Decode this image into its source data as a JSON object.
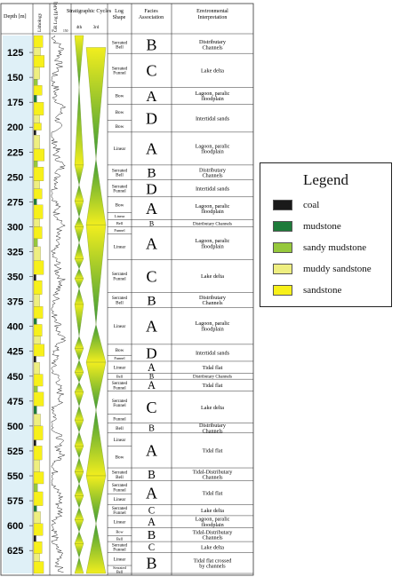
{
  "headers": {
    "depth": "Depth [m]",
    "lithology": "Lithology",
    "gr_log": "GR Log [gAPI]",
    "gr_min": "0",
    "gr_max": "150",
    "cycles": "Stratigraphic Cycles",
    "cycle_4th": "4th",
    "cycle_3rd": "3rd",
    "log_shape": "Log Shape",
    "facies": "Facies Association",
    "environment": "Environmental Interpretation"
  },
  "depth_range": [
    108,
    648
  ],
  "depth_ticks": [
    "125",
    "150",
    "175",
    "200",
    "225",
    "250",
    "275",
    "300",
    "325",
    "350",
    "375",
    "400",
    "425",
    "450",
    "475",
    "500",
    "525",
    "550",
    "575",
    "600",
    "625"
  ],
  "log_shapes": [
    {
      "top": 108,
      "bottom": 126,
      "label": "Serrated Bell"
    },
    {
      "top": 126,
      "bottom": 160,
      "label": "Serrated Funnel"
    },
    {
      "top": 160,
      "bottom": 177,
      "label": "Bow"
    },
    {
      "top": 177,
      "bottom": 193,
      "label": "Bow"
    },
    {
      "top": 193,
      "bottom": 205,
      "label": "Bow"
    },
    {
      "top": 205,
      "bottom": 238,
      "label": "Linear"
    },
    {
      "top": 238,
      "bottom": 253,
      "label": "Serrated Bell"
    },
    {
      "top": 253,
      "bottom": 270,
      "label": "Serrated Funnel"
    },
    {
      "top": 270,
      "bottom": 286,
      "label": "Bow"
    },
    {
      "top": 286,
      "bottom": 293,
      "label": "Linear"
    },
    {
      "top": 293,
      "bottom": 300,
      "label": "Bell"
    },
    {
      "top": 300,
      "bottom": 307,
      "label": "Funnel"
    },
    {
      "top": 307,
      "bottom": 333,
      "label": "Linear"
    },
    {
      "top": 333,
      "bottom": 366,
      "label": "Serrated Funnel"
    },
    {
      "top": 366,
      "bottom": 381,
      "label": "Serrated Bell"
    },
    {
      "top": 381,
      "bottom": 418,
      "label": "Linear"
    },
    {
      "top": 418,
      "bottom": 429,
      "label": "Bow"
    },
    {
      "top": 429,
      "bottom": 435,
      "label": "Funnel"
    },
    {
      "top": 435,
      "bottom": 447,
      "label": "Linear"
    },
    {
      "top": 447,
      "bottom": 453,
      "label": "Bell"
    },
    {
      "top": 453,
      "bottom": 465,
      "label": "Serrated Funnel"
    },
    {
      "top": 465,
      "bottom": 488,
      "label": "Serrated Funnel"
    },
    {
      "top": 488,
      "bottom": 497,
      "label": "Funnel"
    },
    {
      "top": 497,
      "bottom": 507,
      "label": "Bell"
    },
    {
      "top": 507,
      "bottom": 520,
      "label": "Linear"
    },
    {
      "top": 520,
      "bottom": 542,
      "label": "Bow"
    },
    {
      "top": 542,
      "bottom": 555,
      "label": "Serrated Bell"
    },
    {
      "top": 555,
      "bottom": 568,
      "label": "Serrated Funnel"
    },
    {
      "top": 568,
      "bottom": 579,
      "label": "Linear"
    },
    {
      "top": 579,
      "bottom": 590,
      "label": "Serrated Funnel"
    },
    {
      "top": 590,
      "bottom": 602,
      "label": "Linear"
    },
    {
      "top": 602,
      "bottom": 610,
      "label": "Bow"
    },
    {
      "top": 610,
      "bottom": 616,
      "label": "Bell"
    },
    {
      "top": 616,
      "bottom": 627,
      "label": "Serrated Funnel"
    },
    {
      "top": 627,
      "bottom": 640,
      "label": "Linear"
    },
    {
      "top": 640,
      "bottom": 648,
      "label": "Serrated Bell"
    }
  ],
  "facies": [
    {
      "top": 108,
      "bottom": 126,
      "letter": "B",
      "env": "Distributary Channels"
    },
    {
      "top": 126,
      "bottom": 160,
      "letter": "C",
      "env": "Lake delta"
    },
    {
      "top": 160,
      "bottom": 177,
      "letter": "A",
      "env": "Lagoon, paralic floodplain"
    },
    {
      "top": 177,
      "bottom": 205,
      "letter": "D",
      "env": "Intertidal sands"
    },
    {
      "top": 205,
      "bottom": 238,
      "letter": "A",
      "env": "Lagoon, paralic floodplain"
    },
    {
      "top": 238,
      "bottom": 253,
      "letter": "B",
      "env": "Distributary Channels"
    },
    {
      "top": 253,
      "bottom": 270,
      "letter": "D",
      "env": "Intertidal sands"
    },
    {
      "top": 270,
      "bottom": 293,
      "letter": "A",
      "env": "Lagoon, paralic floodplain"
    },
    {
      "top": 293,
      "bottom": 300,
      "letter": "B",
      "env": "Distributary Channels"
    },
    {
      "top": 300,
      "bottom": 333,
      "letter": "A",
      "env": "Lagoon, paralic floodplain"
    },
    {
      "top": 333,
      "bottom": 366,
      "letter": "C",
      "env": "Lake delta"
    },
    {
      "top": 366,
      "bottom": 381,
      "letter": "B",
      "env": "Distributary Channels"
    },
    {
      "top": 381,
      "bottom": 418,
      "letter": "A",
      "env": "Lagoon, paralic floodplain"
    },
    {
      "top": 418,
      "bottom": 435,
      "letter": "D",
      "env": "Intertidal sands"
    },
    {
      "top": 435,
      "bottom": 447,
      "letter": "A",
      "env": "Tidal flat"
    },
    {
      "top": 447,
      "bottom": 453,
      "letter": "B",
      "env": "Distributary Channels"
    },
    {
      "top": 453,
      "bottom": 465,
      "letter": "A",
      "env": "Tidal flat"
    },
    {
      "top": 465,
      "bottom": 497,
      "letter": "C",
      "env": "Lake delta"
    },
    {
      "top": 497,
      "bottom": 507,
      "letter": "B",
      "env": "Distributary Channels"
    },
    {
      "top": 507,
      "bottom": 542,
      "letter": "A",
      "env": "Tidal flat"
    },
    {
      "top": 542,
      "bottom": 555,
      "letter": "B",
      "env": "Tidal-Distributary Channels"
    },
    {
      "top": 555,
      "bottom": 579,
      "letter": "A",
      "env": "Tidal flat"
    },
    {
      "top": 579,
      "bottom": 590,
      "letter": "C",
      "env": "Lake delta"
    },
    {
      "top": 590,
      "bottom": 602,
      "letter": "A",
      "env": "Lagoon, paralic floodplain"
    },
    {
      "top": 602,
      "bottom": 616,
      "letter": "B",
      "env": "Tidal-Distributary Channels"
    },
    {
      "top": 616,
      "bottom": 627,
      "letter": "C",
      "env": "Lake delta"
    },
    {
      "top": 627,
      "bottom": 648,
      "letter": "B",
      "env": "Tidal flat crossed by channels"
    }
  ],
  "cycles_4th": [
    {
      "top": 108,
      "bottom": 160,
      "kind": "down"
    },
    {
      "top": 160,
      "bottom": 238,
      "kind": "up"
    },
    {
      "top": 238,
      "bottom": 258,
      "kind": "down"
    },
    {
      "top": 258,
      "bottom": 274,
      "kind": "up"
    },
    {
      "top": 274,
      "bottom": 290,
      "kind": "down"
    },
    {
      "top": 290,
      "bottom": 300,
      "kind": "up"
    },
    {
      "top": 300,
      "bottom": 316,
      "kind": "down"
    },
    {
      "top": 316,
      "bottom": 332,
      "kind": "up"
    },
    {
      "top": 332,
      "bottom": 342,
      "kind": "down"
    },
    {
      "top": 342,
      "bottom": 352,
      "kind": "up"
    },
    {
      "top": 352,
      "bottom": 362,
      "kind": "down"
    },
    {
      "top": 362,
      "bottom": 378,
      "kind": "up"
    },
    {
      "top": 378,
      "bottom": 410,
      "kind": "down"
    },
    {
      "top": 410,
      "bottom": 422,
      "kind": "up"
    },
    {
      "top": 422,
      "bottom": 434,
      "kind": "down"
    },
    {
      "top": 434,
      "bottom": 446,
      "kind": "up"
    },
    {
      "top": 446,
      "bottom": 456,
      "kind": "down"
    },
    {
      "top": 456,
      "bottom": 466,
      "kind": "up"
    },
    {
      "top": 466,
      "bottom": 480,
      "kind": "down"
    },
    {
      "top": 480,
      "bottom": 494,
      "kind": "up"
    },
    {
      "top": 494,
      "bottom": 506,
      "kind": "down"
    },
    {
      "top": 506,
      "bottom": 520,
      "kind": "up"
    },
    {
      "top": 520,
      "bottom": 532,
      "kind": "down"
    },
    {
      "top": 532,
      "bottom": 546,
      "kind": "up"
    },
    {
      "top": 546,
      "bottom": 558,
      "kind": "down"
    },
    {
      "top": 558,
      "bottom": 570,
      "kind": "up"
    },
    {
      "top": 570,
      "bottom": 582,
      "kind": "down"
    },
    {
      "top": 582,
      "bottom": 594,
      "kind": "up"
    },
    {
      "top": 594,
      "bottom": 606,
      "kind": "down"
    },
    {
      "top": 606,
      "bottom": 618,
      "kind": "up"
    },
    {
      "top": 618,
      "bottom": 632,
      "kind": "down"
    },
    {
      "top": 632,
      "bottom": 648,
      "kind": "up"
    }
  ],
  "cycles_3rd": [
    {
      "top": 120,
      "bottom": 232,
      "kind": "down"
    },
    {
      "top": 232,
      "bottom": 298,
      "kind": "up"
    },
    {
      "top": 298,
      "bottom": 398,
      "kind": "down"
    },
    {
      "top": 398,
      "bottom": 436,
      "kind": "up"
    },
    {
      "top": 436,
      "bottom": 484,
      "kind": "down"
    },
    {
      "top": 484,
      "bottom": 550,
      "kind": "up"
    },
    {
      "top": 550,
      "bottom": 598,
      "kind": "down"
    },
    {
      "top": 598,
      "bottom": 648,
      "kind": "up"
    }
  ],
  "lithology": [
    {
      "top": 108,
      "bottom": 120,
      "type": "sandstone",
      "width": 0.6
    },
    {
      "top": 120,
      "bottom": 128,
      "type": "muddy sandstone",
      "width": 0.45
    },
    {
      "top": 128,
      "bottom": 140,
      "type": "sandstone",
      "width": 0.7
    },
    {
      "top": 140,
      "bottom": 152,
      "type": "muddy sandstone",
      "width": 0.4
    },
    {
      "top": 152,
      "bottom": 158,
      "type": "sandy mudstone",
      "width": 0.25
    },
    {
      "top": 158,
      "bottom": 168,
      "type": "sandstone",
      "width": 0.55
    },
    {
      "top": 168,
      "bottom": 175,
      "type": "mudstone",
      "width": 0.2
    },
    {
      "top": 175,
      "bottom": 188,
      "type": "sandstone",
      "width": 0.65
    },
    {
      "top": 188,
      "bottom": 196,
      "type": "muddy sandstone",
      "width": 0.4
    },
    {
      "top": 196,
      "bottom": 203,
      "type": "sandstone",
      "width": 0.5
    },
    {
      "top": 203,
      "bottom": 208,
      "type": "coal",
      "width": 0.15
    },
    {
      "top": 208,
      "bottom": 222,
      "type": "muddy sandstone",
      "width": 0.4
    },
    {
      "top": 222,
      "bottom": 234,
      "type": "sandstone",
      "width": 0.7
    },
    {
      "top": 234,
      "bottom": 240,
      "type": "sandy mudstone",
      "width": 0.25
    },
    {
      "top": 240,
      "bottom": 254,
      "type": "sandstone",
      "width": 0.65
    },
    {
      "top": 254,
      "bottom": 262,
      "type": "muddy sandstone",
      "width": 0.4
    },
    {
      "top": 262,
      "bottom": 272,
      "type": "sandstone",
      "width": 0.55
    },
    {
      "top": 272,
      "bottom": 278,
      "type": "mudstone",
      "width": 0.2
    },
    {
      "top": 278,
      "bottom": 292,
      "type": "sandstone",
      "width": 0.6
    },
    {
      "top": 292,
      "bottom": 300,
      "type": "muddy sandstone",
      "width": 0.4
    },
    {
      "top": 300,
      "bottom": 312,
      "type": "sandstone",
      "width": 0.55
    },
    {
      "top": 312,
      "bottom": 320,
      "type": "sandy mudstone",
      "width": 0.25
    },
    {
      "top": 320,
      "bottom": 334,
      "type": "muddy sandstone",
      "width": 0.45
    },
    {
      "top": 334,
      "bottom": 348,
      "type": "sandstone",
      "width": 0.65
    },
    {
      "top": 348,
      "bottom": 354,
      "type": "coal",
      "width": 0.15
    },
    {
      "top": 354,
      "bottom": 368,
      "type": "sandstone",
      "width": 0.55
    },
    {
      "top": 368,
      "bottom": 380,
      "type": "muddy sandstone",
      "width": 0.4
    },
    {
      "top": 380,
      "bottom": 392,
      "type": "sandstone",
      "width": 0.6
    },
    {
      "top": 392,
      "bottom": 398,
      "type": "mudstone",
      "width": 0.2
    },
    {
      "top": 398,
      "bottom": 410,
      "type": "sandstone",
      "width": 0.55
    },
    {
      "top": 410,
      "bottom": 418,
      "type": "muddy sandstone",
      "width": 0.45
    },
    {
      "top": 418,
      "bottom": 430,
      "type": "sandstone",
      "width": 0.7
    },
    {
      "top": 430,
      "bottom": 436,
      "type": "coal",
      "width": 0.15
    },
    {
      "top": 436,
      "bottom": 448,
      "type": "muddy sandstone",
      "width": 0.4
    },
    {
      "top": 448,
      "bottom": 460,
      "type": "sandstone",
      "width": 0.6
    },
    {
      "top": 460,
      "bottom": 466,
      "type": "sandy mudstone",
      "width": 0.25
    },
    {
      "top": 466,
      "bottom": 480,
      "type": "sandstone",
      "width": 0.65
    },
    {
      "top": 480,
      "bottom": 488,
      "type": "mudstone",
      "width": 0.2
    },
    {
      "top": 488,
      "bottom": 500,
      "type": "muddy sandstone",
      "width": 0.45
    },
    {
      "top": 500,
      "bottom": 514,
      "type": "sandstone",
      "width": 0.6
    },
    {
      "top": 514,
      "bottom": 520,
      "type": "coal",
      "width": 0.15
    },
    {
      "top": 520,
      "bottom": 534,
      "type": "sandstone",
      "width": 0.55
    },
    {
      "top": 534,
      "bottom": 546,
      "type": "muddy sandstone",
      "width": 0.4
    },
    {
      "top": 546,
      "bottom": 558,
      "type": "sandstone",
      "width": 0.65
    },
    {
      "top": 558,
      "bottom": 566,
      "type": "sandy mudstone",
      "width": 0.25
    },
    {
      "top": 566,
      "bottom": 580,
      "type": "sandstone",
      "width": 0.6
    },
    {
      "top": 580,
      "bottom": 586,
      "type": "mudstone",
      "width": 0.2
    },
    {
      "top": 586,
      "bottom": 598,
      "type": "muddy sandstone",
      "width": 0.45
    },
    {
      "top": 598,
      "bottom": 610,
      "type": "sandstone",
      "width": 0.6
    },
    {
      "top": 610,
      "bottom": 616,
      "type": "coal",
      "width": 0.15
    },
    {
      "top": 616,
      "bottom": 628,
      "type": "sandstone",
      "width": 0.55
    },
    {
      "top": 628,
      "bottom": 636,
      "type": "muddy sandstone",
      "width": 0.4
    },
    {
      "top": 636,
      "bottom": 648,
      "type": "sandstone",
      "width": 0.65
    }
  ],
  "legend": {
    "title": "Legend",
    "items": [
      {
        "label": "coal",
        "color": "#1a1a1a"
      },
      {
        "label": "mudstone",
        "color": "#1e7b3a"
      },
      {
        "label": "sandy mudstone",
        "color": "#96c83c"
      },
      {
        "label": "muddy sandstone",
        "color": "#eeee80"
      },
      {
        "label": "sandstone",
        "color": "#f7f01a"
      }
    ]
  },
  "colors": {
    "cycle_wide": "#f2ee1e",
    "cycle_narrow": "#3a9a3a",
    "depth_band": "#dff0f7"
  }
}
